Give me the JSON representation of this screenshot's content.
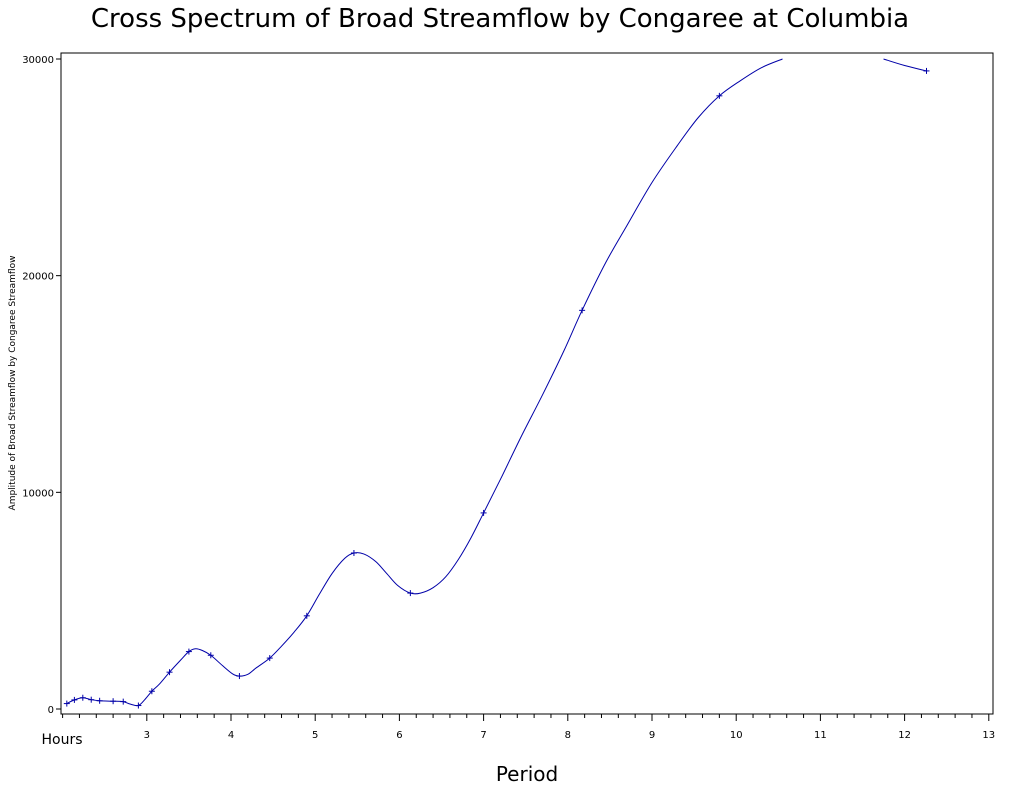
{
  "chart_data": {
    "type": "line",
    "title": "Cross Spectrum of Broad Streamflow by Congaree at Columbia",
    "xlabel": "Period",
    "ylabel": "Amplitude of Broad Streamflow by Congaree Streamflow",
    "x_axis_start_label": "Hours",
    "xlim": [
      2.0,
      13.0
    ],
    "ylim": [
      0,
      30000
    ],
    "x_ticks": [
      3,
      4,
      5,
      6,
      7,
      8,
      9,
      10,
      11,
      12,
      13
    ],
    "y_ticks": [
      0,
      10000,
      20000,
      30000
    ],
    "grid": false,
    "line_color": "#0000a8",
    "series_points": {
      "x": [
        2.05,
        2.14,
        2.24,
        2.34,
        2.44,
        2.6,
        2.72,
        2.9,
        3.06,
        3.27,
        3.5,
        3.76,
        4.1,
        4.46,
        4.9,
        5.46,
        6.13,
        7.0,
        8.17,
        9.8,
        12.26
      ],
      "y": [
        250,
        420,
        520,
        430,
        380,
        360,
        340,
        160,
        820,
        1700,
        2650,
        2480,
        1520,
        2350,
        4300,
        7200,
        5350,
        9050,
        18400,
        28300,
        29450
      ]
    },
    "series_curve": [
      {
        "x": [
          2.05,
          2.14,
          2.24,
          2.34,
          2.44,
          2.6,
          2.72,
          2.8,
          2.9,
          2.98,
          3.06,
          3.15,
          3.27,
          3.4,
          3.5,
          3.58,
          3.66,
          3.76,
          3.9,
          4.02,
          4.1,
          4.2,
          4.3,
          4.46,
          4.6,
          4.75,
          4.9,
          5.05,
          5.2,
          5.35,
          5.46,
          5.58,
          5.72,
          5.85,
          5.98,
          6.13,
          6.25,
          6.4,
          6.55,
          6.7,
          6.85,
          7.0,
          7.2,
          7.45,
          7.7,
          7.95,
          8.17,
          8.45,
          8.7,
          9.0,
          9.3,
          9.55,
          9.8,
          10.05,
          10.3,
          10.55
        ],
        "y": [
          250,
          420,
          520,
          430,
          380,
          360,
          340,
          230,
          160,
          450,
          820,
          1150,
          1700,
          2250,
          2650,
          2780,
          2700,
          2480,
          2000,
          1620,
          1520,
          1600,
          1900,
          2350,
          2900,
          3550,
          4300,
          5300,
          6250,
          6950,
          7200,
          7150,
          6800,
          6250,
          5700,
          5350,
          5350,
          5600,
          6100,
          6900,
          7900,
          9050,
          10600,
          12600,
          14500,
          16500,
          18400,
          20600,
          22300,
          24300,
          26000,
          27300,
          28300,
          29000,
          29600,
          30000
        ]
      },
      {
        "x": [
          11.75,
          12.0,
          12.26
        ],
        "y": [
          30000,
          29700,
          29450
        ]
      }
    ]
  }
}
